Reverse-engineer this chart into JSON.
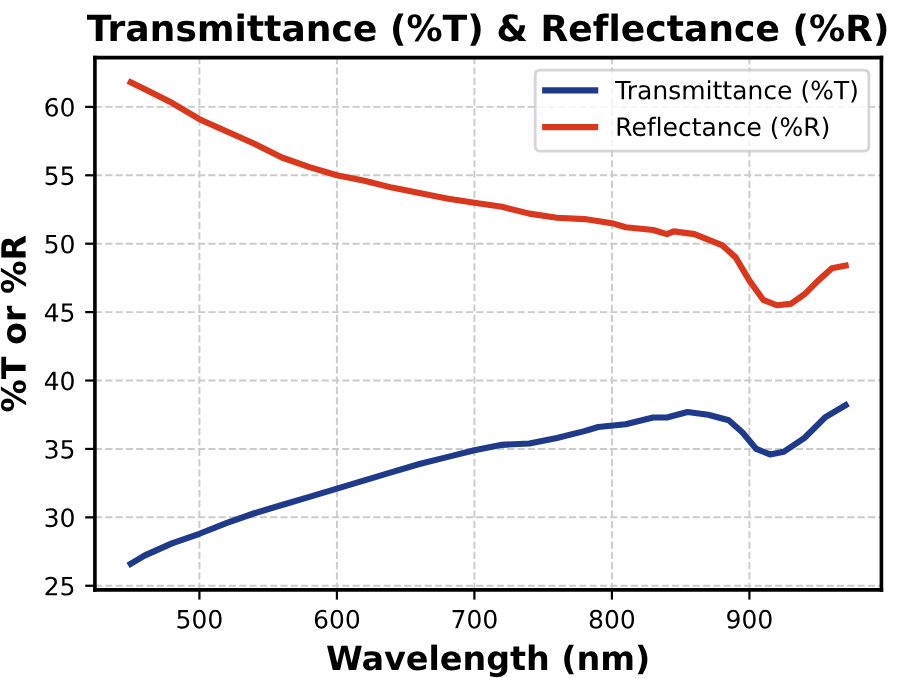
{
  "chart_data": {
    "type": "line",
    "title": "Transmittance (%T) & Reflectance (%R)",
    "xlabel": "Wavelength (nm)",
    "ylabel": "%T or %R",
    "xlim": [
      424,
      996
    ],
    "xticks": [
      500,
      600,
      700,
      800,
      900
    ],
    "ylim": [
      24.7,
      63.6
    ],
    "yticks": [
      25,
      30,
      35,
      40,
      45,
      50,
      55,
      60
    ],
    "grid": true,
    "legend": "top right",
    "series": [
      {
        "name": "Transmittance (%T)",
        "color": "#1f3a8a",
        "x": [
          450,
          460,
          480,
          500,
          520,
          540,
          560,
          580,
          600,
          620,
          640,
          660,
          680,
          700,
          720,
          740,
          760,
          780,
          790,
          810,
          830,
          840,
          855,
          870,
          885,
          895,
          905,
          915,
          925,
          940,
          955,
          970
        ],
        "values": [
          26.6,
          27.2,
          28.1,
          28.8,
          29.6,
          30.3,
          30.9,
          31.5,
          32.1,
          32.7,
          33.3,
          33.9,
          34.4,
          34.9,
          35.3,
          35.4,
          35.8,
          36.3,
          36.6,
          36.8,
          37.3,
          37.3,
          37.7,
          37.5,
          37.1,
          36.2,
          35.0,
          34.6,
          34.8,
          35.8,
          37.3,
          38.2
        ]
      },
      {
        "name": "Reflectance (%R)",
        "color": "#d9381e",
        "x": [
          450,
          460,
          480,
          500,
          520,
          540,
          560,
          580,
          600,
          620,
          640,
          660,
          680,
          700,
          720,
          740,
          760,
          780,
          800,
          810,
          830,
          840,
          845,
          860,
          880,
          890,
          900,
          910,
          920,
          930,
          940,
          950,
          960,
          970
        ],
        "values": [
          61.8,
          61.3,
          60.3,
          59.1,
          58.2,
          57.3,
          56.3,
          55.6,
          55.0,
          54.6,
          54.1,
          53.7,
          53.3,
          53.0,
          52.7,
          52.2,
          51.9,
          51.8,
          51.5,
          51.2,
          51.0,
          50.7,
          50.9,
          50.7,
          49.9,
          49.0,
          47.3,
          45.9,
          45.5,
          45.6,
          46.3,
          47.3,
          48.2,
          48.4
        ]
      }
    ]
  }
}
